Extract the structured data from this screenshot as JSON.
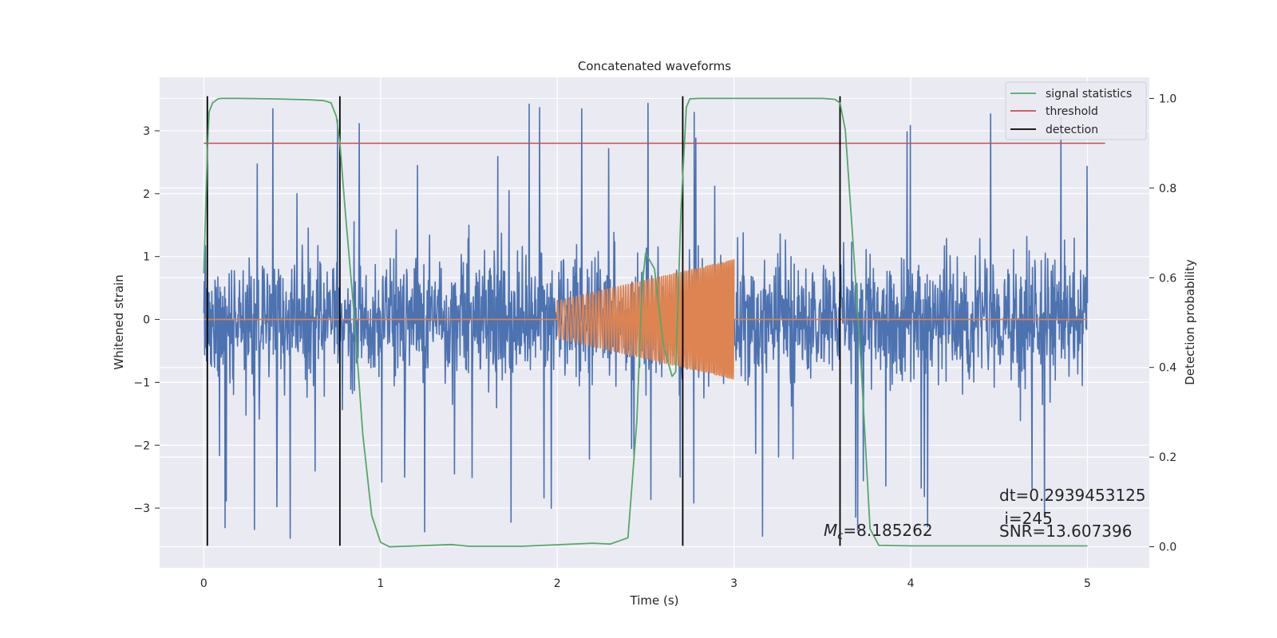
{
  "chart_data": {
    "type": "line",
    "title": "Concatenated waveforms",
    "xlabel": "Time (s)",
    "ylabel": "Whitened strain",
    "y2label": "Detection probability",
    "xlim": [
      -0.25,
      5.35
    ],
    "ylim": [
      -3.95,
      3.85
    ],
    "y2lim": [
      -0.047,
      1.047
    ],
    "xticks": [
      0,
      1,
      2,
      3,
      4,
      5
    ],
    "xtick_labels": [
      "0",
      "1",
      "2",
      "3",
      "4",
      "5"
    ],
    "yticks": [
      -3,
      -2,
      -1,
      0,
      1,
      2,
      3
    ],
    "ytick_labels": [
      "−3",
      "−2",
      "−1",
      "0",
      "1",
      "2",
      "3"
    ],
    "y2ticks": [
      0.0,
      0.2,
      0.4,
      0.6,
      0.8,
      1.0
    ],
    "y2tick_labels": [
      "0.0",
      "0.2",
      "0.4",
      "0.6",
      "0.8",
      "1.0"
    ],
    "grid": true,
    "legend_position": "top-right",
    "legend": [
      {
        "label": "signal statistics",
        "color": "#55a868"
      },
      {
        "label": "threshold",
        "color": "#c44e52"
      },
      {
        "label": "detection",
        "color": "#000000"
      }
    ],
    "colors": {
      "strain": "#4c72b0",
      "template": "#dd8452",
      "signal_statistics": "#55a868",
      "threshold": "#c44e52",
      "detection": "#000000",
      "plot_background": "#eaeaf2",
      "grid": "#ffffff"
    },
    "series": [
      {
        "name": "whitened strain",
        "x_range": [
          0,
          5
        ],
        "typical_amplitude": 0.7,
        "peak_range": [
          -3.5,
          3.6
        ]
      },
      {
        "name": "injected waveform",
        "x_range": [
          2,
          3
        ],
        "amplitude_start": 0.3,
        "amplitude_end": 0.95
      },
      {
        "name": "signal statistics",
        "x": [
          0.0,
          0.01,
          0.02,
          0.03,
          0.05,
          0.08,
          0.1,
          0.2,
          0.4,
          0.6,
          0.68,
          0.72,
          0.75,
          0.77,
          0.8,
          0.85,
          0.9,
          0.95,
          1.0,
          1.05,
          1.2,
          1.4,
          1.45,
          1.5,
          1.8,
          2.2,
          2.3,
          2.4,
          2.45,
          2.48,
          2.5,
          2.55,
          2.6,
          2.65,
          2.67,
          2.7,
          2.73,
          2.75,
          2.8,
          3.0,
          3.3,
          3.5,
          3.57,
          3.6,
          3.63,
          3.67,
          3.72,
          3.77,
          3.82,
          4.0,
          4.5,
          5.0
        ],
        "y": [
          0.61,
          0.75,
          0.88,
          0.97,
          0.99,
          0.999,
          1.0,
          1.0,
          0.999,
          0.997,
          0.995,
          0.99,
          0.96,
          0.9,
          0.75,
          0.52,
          0.25,
          0.07,
          0.01,
          0.0,
          0.002,
          0.005,
          0.003,
          0.001,
          0.001,
          0.008,
          0.006,
          0.02,
          0.28,
          0.58,
          0.655,
          0.62,
          0.45,
          0.38,
          0.39,
          0.75,
          0.98,
          0.999,
          1.0,
          1.0,
          1.0,
          1.0,
          0.998,
          0.99,
          0.93,
          0.7,
          0.4,
          0.04,
          0.003,
          0.002,
          0.002,
          0.002
        ]
      },
      {
        "name": "threshold",
        "x": [
          0,
          5.1
        ],
        "y": [
          0.9,
          0.9
        ],
        "axis": "right"
      }
    ],
    "detections": [
      0.02,
      0.77,
      2.71,
      3.6
    ],
    "detection_y_range": [
      -3.6,
      3.55
    ],
    "annotations": {
      "mc_symbol": "M",
      "mc_subscript": "c",
      "mc_value": "=8.185262",
      "dt": "dt=0.2939453125",
      "i": " i=245",
      "snr": "SNR=13.607396"
    }
  }
}
